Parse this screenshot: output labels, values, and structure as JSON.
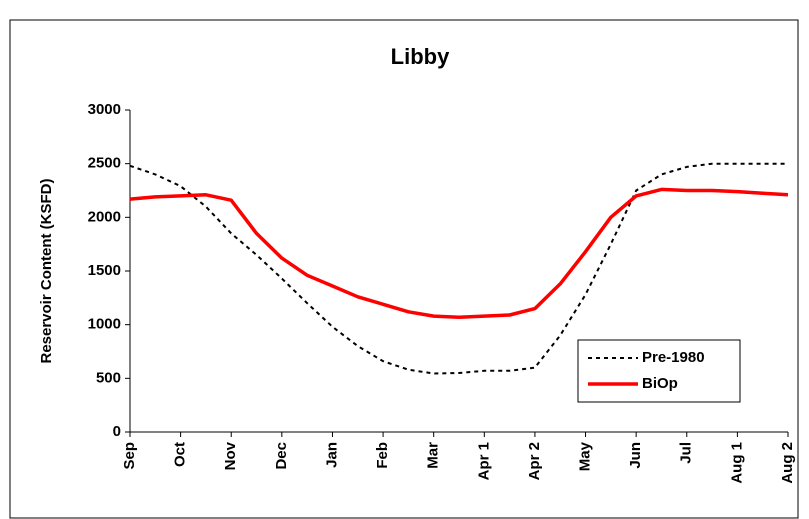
{
  "chart_data": {
    "type": "line",
    "title": "Libby",
    "y_label": "Reservoir Content (KSFD)",
    "categories": [
      "Sep",
      null,
      "Oct",
      null,
      "Nov",
      null,
      "Dec",
      null,
      "Jan",
      null,
      "Feb",
      null,
      "Mar",
      null,
      "Apr 1",
      null,
      "Apr 2",
      null,
      "May",
      null,
      "Jun",
      null,
      "Jul",
      null,
      "Aug 1",
      null,
      "Aug 2"
    ],
    "ylim": [
      0,
      3000
    ],
    "yticks": [
      0,
      500,
      1000,
      1500,
      2000,
      2500,
      3000
    ],
    "legend": "lower right",
    "series": [
      {
        "name": "Pre-1980",
        "color": "#000000",
        "style": "dashed",
        "values": [
          2480,
          2400,
          2290,
          2100,
          1850,
          1650,
          1430,
          1200,
          980,
          800,
          660,
          580,
          545,
          550,
          570,
          570,
          600,
          900,
          1280,
          1750,
          2250,
          2400,
          2470,
          2500,
          2500,
          2500,
          2500
        ]
      },
      {
        "name": "BiOp",
        "color": "#ff0000",
        "style": "solid",
        "values": [
          2170,
          2190,
          2200,
          2210,
          2160,
          1850,
          1620,
          1460,
          1360,
          1260,
          1190,
          1120,
          1080,
          1070,
          1080,
          1090,
          1150,
          1380,
          1680,
          2000,
          2200,
          2260,
          2250,
          2250,
          2240,
          2225,
          2210
        ]
      }
    ]
  }
}
